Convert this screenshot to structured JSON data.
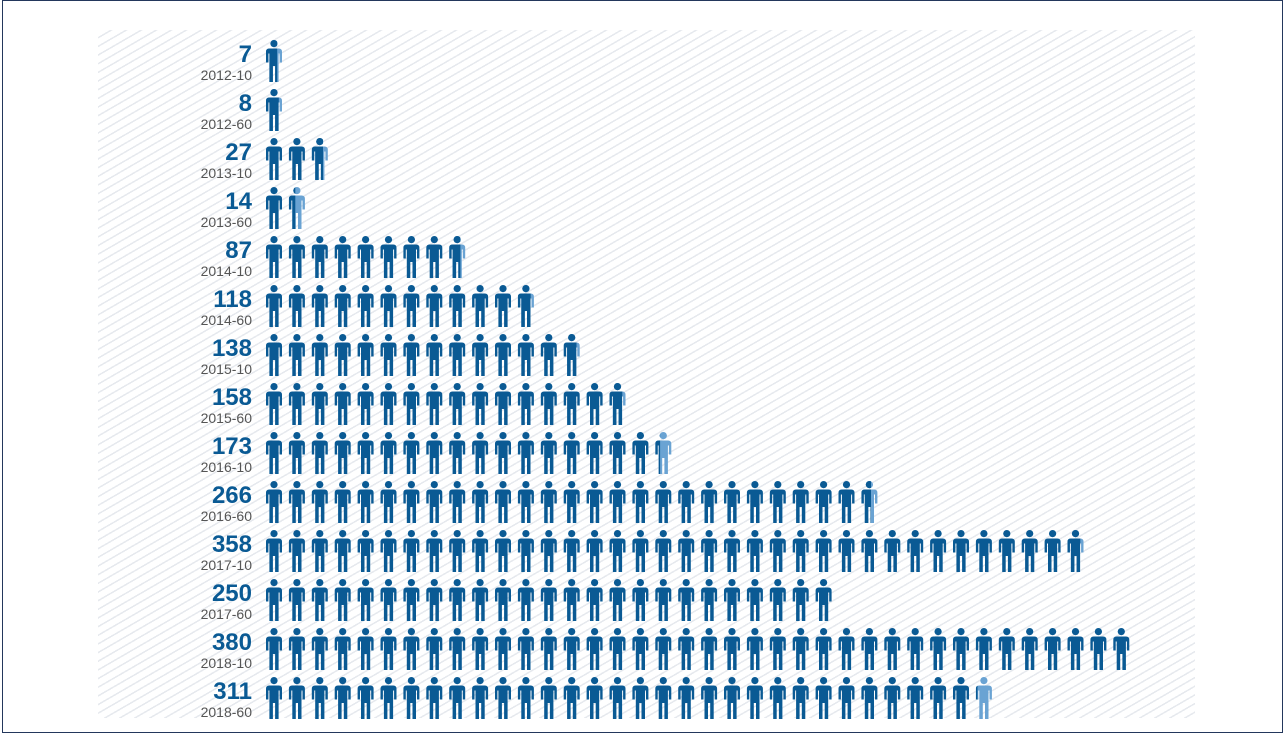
{
  "chart_data": {
    "type": "bar",
    "categories": [
      "2012-10",
      "2012-60",
      "2013-10",
      "2013-60",
      "2014-10",
      "2014-60",
      "2015-10",
      "2015-60",
      "2016-10",
      "2016-60",
      "2017-10",
      "2017-60",
      "2018-10",
      "2018-60"
    ],
    "values": [
      7,
      8,
      27,
      14,
      87,
      118,
      138,
      158,
      173,
      266,
      358,
      250,
      380,
      311
    ],
    "units_per_icon": 10,
    "title": "",
    "xlabel": "",
    "ylabel": "",
    "grid": false,
    "legend": "none"
  },
  "colors": {
    "icon_full": "#0a5a94",
    "icon_partial": "#6aa3d3",
    "value_text": "#0a5a94",
    "category_text": "#555555",
    "border": "#23375c"
  },
  "icon_name": "person-icon"
}
